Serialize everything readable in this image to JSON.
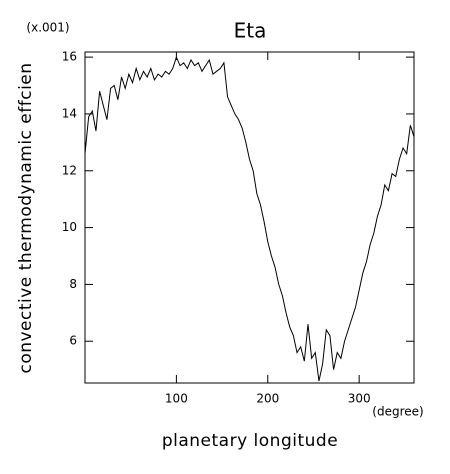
{
  "chart_data": {
    "type": "line",
    "title": "Eta",
    "ylabel": "convective thermodynamic effcien",
    "yunit": "(x.001)",
    "xlabel": "planetary longitude",
    "xunit": "(degree)",
    "x": [
      0,
      4,
      8,
      12,
      16,
      20,
      24,
      28,
      32,
      36,
      40,
      44,
      48,
      52,
      56,
      60,
      64,
      68,
      72,
      76,
      80,
      84,
      88,
      92,
      96,
      100,
      104,
      108,
      112,
      116,
      120,
      124,
      128,
      132,
      136,
      140,
      144,
      148,
      152,
      156,
      160,
      164,
      168,
      172,
      176,
      180,
      184,
      188,
      192,
      196,
      200,
      204,
      208,
      212,
      216,
      220,
      224,
      228,
      232,
      236,
      240,
      244,
      248,
      252,
      256,
      260,
      264,
      268,
      272,
      276,
      280,
      284,
      288,
      292,
      296,
      300,
      304,
      308,
      312,
      316,
      320,
      324,
      328,
      332,
      336,
      340,
      344,
      348,
      352,
      356,
      360
    ],
    "series": [
      {
        "color": "#000000",
        "values": [
          12.6,
          13.9,
          14.1,
          13.4,
          14.8,
          14.3,
          13.8,
          14.9,
          15.0,
          14.5,
          15.3,
          14.9,
          15.4,
          15.1,
          15.6,
          15.2,
          15.5,
          15.3,
          15.6,
          15.2,
          15.4,
          15.3,
          15.5,
          15.4,
          15.6,
          16.0,
          15.7,
          15.8,
          15.6,
          15.9,
          15.7,
          15.8,
          15.5,
          15.7,
          15.9,
          15.4,
          15.5,
          15.6,
          15.8,
          14.6,
          14.3,
          14.0,
          13.8,
          13.5,
          13.0,
          12.4,
          12.0,
          11.2,
          10.8,
          10.2,
          9.5,
          9.0,
          8.6,
          8.0,
          7.6,
          7.0,
          6.5,
          6.2,
          5.6,
          5.8,
          5.3,
          6.6,
          5.4,
          5.6,
          4.6,
          5.2,
          6.4,
          6.2,
          5.0,
          5.6,
          5.4,
          6.0,
          6.4,
          6.8,
          7.2,
          7.8,
          8.4,
          8.8,
          9.4,
          9.8,
          10.4,
          10.8,
          11.5,
          11.3,
          11.9,
          11.8,
          12.4,
          12.8,
          12.6,
          13.6,
          13.2
        ]
      }
    ],
    "xlim": [
      0,
      360
    ],
    "xticks": [
      100,
      200,
      300
    ],
    "ylim": [
      4.53,
      16.18
    ],
    "yticks": [
      6,
      8,
      10,
      12,
      14,
      16
    ]
  }
}
